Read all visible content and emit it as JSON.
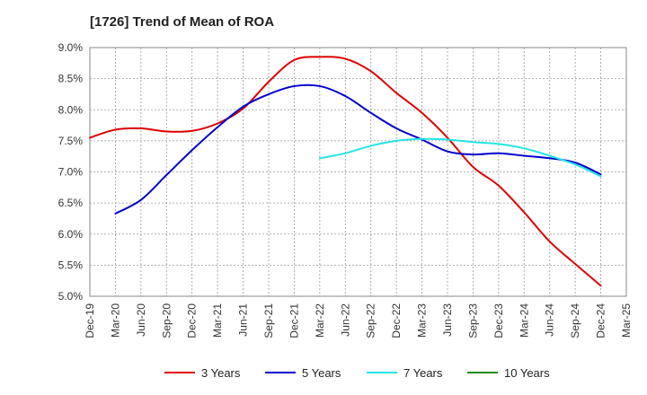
{
  "chart_data": {
    "type": "line",
    "title": "[1726]  Trend of Mean of ROA",
    "xlabel": "",
    "ylabel": "",
    "ylim": [
      5.0,
      9.0
    ],
    "yticks": [
      5.0,
      5.5,
      6.0,
      6.5,
      7.0,
      7.5,
      8.0,
      8.5,
      9.0
    ],
    "ytick_labels": [
      "5.0%",
      "5.5%",
      "6.0%",
      "6.5%",
      "7.0%",
      "7.5%",
      "8.0%",
      "8.5%",
      "9.0%"
    ],
    "x_ticks": [
      "Dec-19",
      "Mar-20",
      "Jun-20",
      "Sep-20",
      "Dec-20",
      "Mar-21",
      "Jun-21",
      "Sep-21",
      "Dec-21",
      "Mar-22",
      "Jun-22",
      "Sep-22",
      "Dec-22",
      "Mar-23",
      "Jun-23",
      "Sep-23",
      "Dec-23",
      "Mar-24",
      "Jun-24",
      "Sep-24",
      "Dec-24",
      "Mar-25"
    ],
    "grid": true,
    "legend_position": "bottom",
    "series": [
      {
        "name": "3 Years",
        "color": "#dd0000",
        "start_index": 0,
        "values": [
          7.55,
          7.68,
          7.7,
          7.65,
          7.66,
          7.78,
          8.02,
          8.45,
          8.8,
          8.85,
          8.82,
          8.62,
          8.27,
          7.95,
          7.55,
          7.08,
          6.78,
          6.35,
          5.88,
          5.52,
          5.17
        ]
      },
      {
        "name": "5 Years",
        "color": "#0000cc",
        "start_index": 1,
        "values": [
          6.33,
          6.55,
          6.95,
          7.35,
          7.72,
          8.05,
          8.25,
          8.38,
          8.38,
          8.22,
          7.95,
          7.7,
          7.52,
          7.33,
          7.28,
          7.3,
          7.26,
          7.22,
          7.15,
          6.96
        ]
      },
      {
        "name": "7 Years",
        "color": "#22e5e5",
        "start_index": 9,
        "values": [
          7.22,
          7.3,
          7.42,
          7.5,
          7.53,
          7.52,
          7.48,
          7.45,
          7.38,
          7.26,
          7.12,
          6.93
        ]
      },
      {
        "name": "10 Years",
        "color": "#228822",
        "start_index": 0,
        "values": []
      }
    ]
  }
}
